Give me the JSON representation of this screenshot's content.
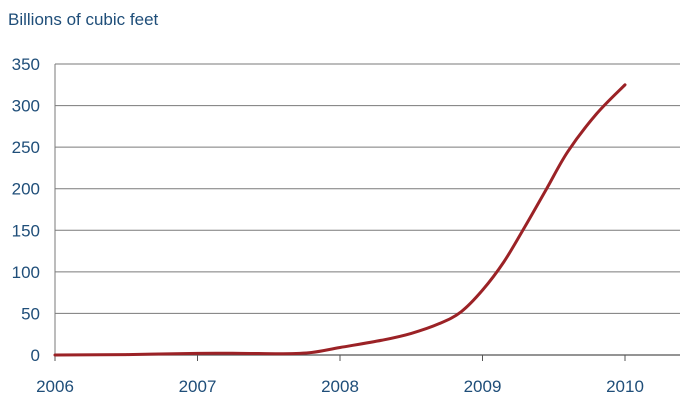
{
  "chart_data": {
    "type": "line",
    "ylabel": "Billions of cubic feet",
    "xlabel": "",
    "xlim": [
      2006,
      2010.4
    ],
    "ylim": [
      0,
      350
    ],
    "xticks": [
      2006,
      2007,
      2008,
      2009,
      2010
    ],
    "yticks": [
      0,
      50,
      100,
      150,
      200,
      250,
      300,
      350
    ],
    "grid": "horizontal",
    "line_color": "#9b2226",
    "series": [
      {
        "name": "",
        "x": [
          2006,
          2006.5,
          2007,
          2007.3,
          2007.6,
          2007.8,
          2008,
          2008.3,
          2008.5,
          2008.7,
          2008.85,
          2009,
          2009.15,
          2009.3,
          2009.45,
          2009.6,
          2009.8,
          2010
        ],
        "values": [
          0,
          0.5,
          2,
          2,
          1.5,
          3,
          9,
          18,
          26,
          38,
          52,
          78,
          112,
          155,
          200,
          245,
          290,
          325
        ]
      }
    ]
  }
}
